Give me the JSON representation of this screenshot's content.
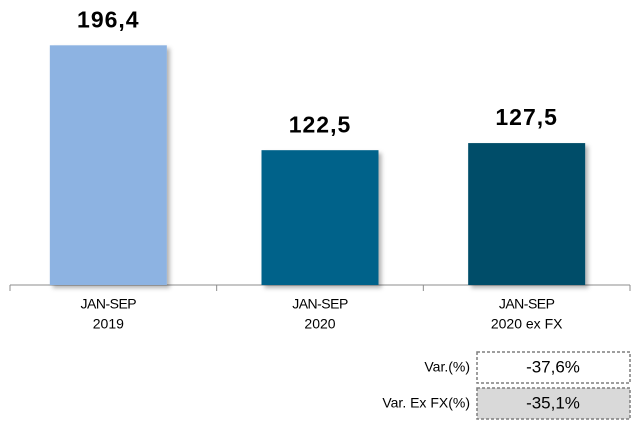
{
  "chart_data": {
    "type": "bar",
    "categories": [
      [
        "JAN-SEP",
        "2019"
      ],
      [
        "JAN-SEP",
        "2020"
      ],
      [
        "JAN-SEP",
        "2020 ex FX"
      ]
    ],
    "values": [
      196.4,
      122.5,
      127.5
    ],
    "value_labels": [
      "196,4",
      "122,5",
      "127,5"
    ],
    "colors": [
      "#8db3e2",
      "#04628a",
      "#044e69"
    ],
    "ylim": [
      27.5,
      210
    ],
    "variations": [
      {
        "label": "Var.(%)",
        "value": "-37,6%"
      },
      {
        "label": "Var. Ex FX(%)",
        "value": "-35,1%"
      }
    ]
  }
}
